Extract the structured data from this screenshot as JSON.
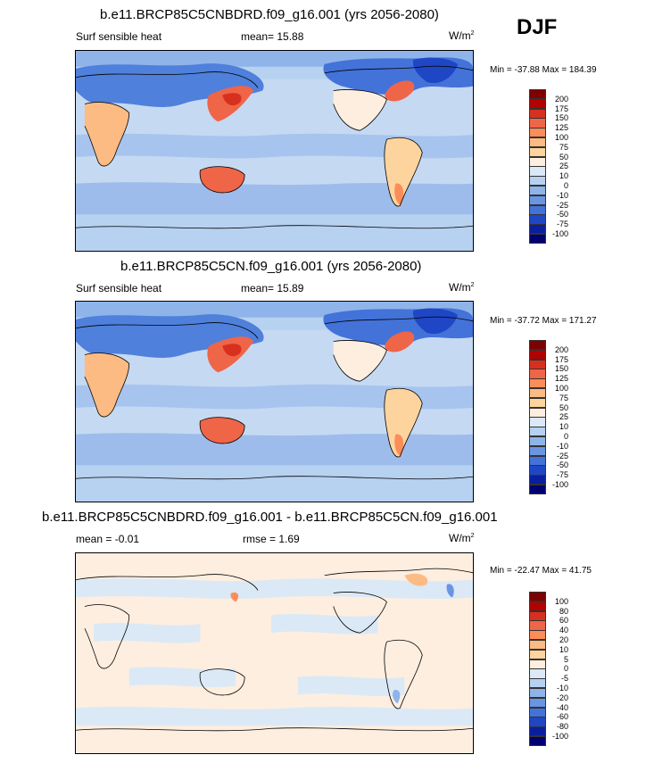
{
  "season": "DJF",
  "panels": [
    {
      "title": "b.e11.BRCP85C5CNBDRD.f09_g16.001 (yrs 2056-2080)",
      "variable": "Surf sensible heat",
      "stat_text": "mean=  15.88",
      "units": "W/m",
      "units_exp": "2",
      "minmax": "Min = -37.88 Max = 184.39",
      "colorbar_labels": [
        "200",
        "175",
        "150",
        "125",
        "100",
        "75",
        "50",
        "25",
        "10",
        "0",
        "-10",
        "-25",
        "-50",
        "-75",
        "-100"
      ]
    },
    {
      "title": "b.e11.BRCP85C5CN.f09_g16.001 (yrs 2056-2080)",
      "variable": "Surf sensible heat",
      "stat_text": "mean=  15.89",
      "units": "W/m",
      "units_exp": "2",
      "minmax": "Min = -37.72 Max = 171.27",
      "colorbar_labels": [
        "200",
        "175",
        "150",
        "125",
        "100",
        "75",
        "50",
        "25",
        "10",
        "0",
        "-10",
        "-25",
        "-50",
        "-75",
        "-100"
      ]
    },
    {
      "title": "b.e11.BRCP85C5CNBDRD.f09_g16.001 - b.e11.BRCP85C5CN.f09_g16.001",
      "variable": "mean =  -0.01",
      "stat_text": "rmse =   1.69",
      "units": "W/m",
      "units_exp": "2",
      "minmax": "Min = -22.47 Max =  41.75",
      "colorbar_labels": [
        "100",
        "80",
        "60",
        "40",
        "20",
        "10",
        "5",
        "0",
        "-5",
        "-10",
        "-20",
        "-40",
        "-60",
        "-80",
        "-100"
      ]
    }
  ],
  "colorbar_colors": [
    "#7f0000",
    "#b30000",
    "#d7301f",
    "#ef6548",
    "#fc8d59",
    "#fdbb84",
    "#fdd49e",
    "#fdeee0",
    "#dbe9f6",
    "#b7d1f0",
    "#8fb4ea",
    "#6a95e2",
    "#4372d9",
    "#1f46c4",
    "#0a1f9e",
    "#000070"
  ]
}
